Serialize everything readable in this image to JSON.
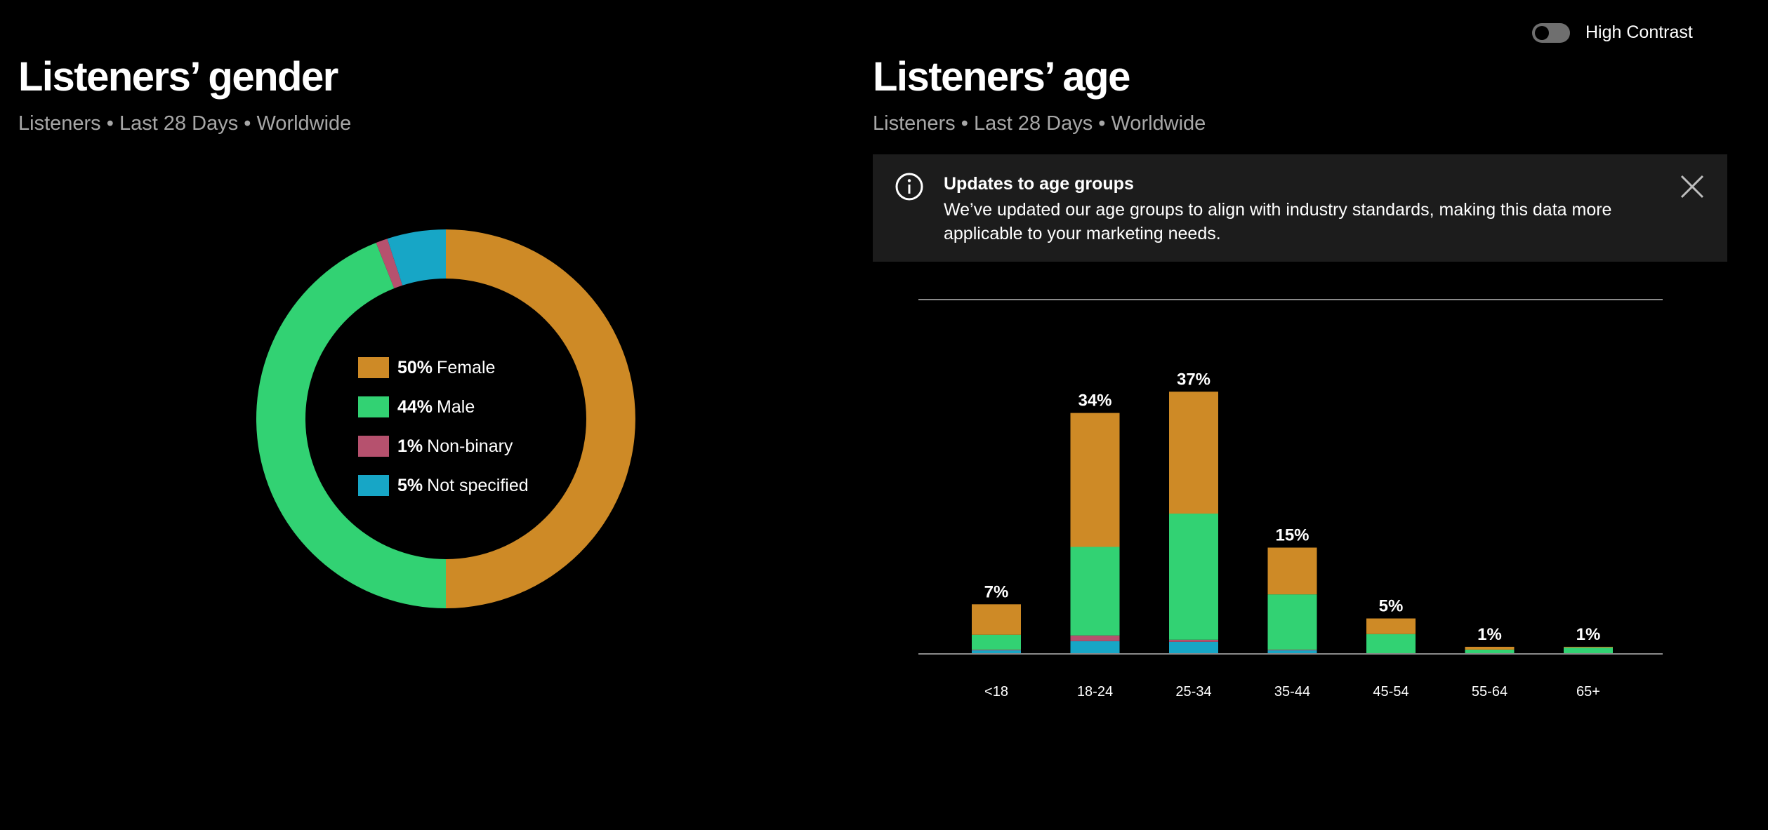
{
  "header": {
    "toggle_label": "High Contrast"
  },
  "gender": {
    "title": "Listeners’ gender",
    "subtitle": "Listeners • Last 28 Days • Worldwide"
  },
  "age": {
    "title": "Listeners’ age",
    "subtitle": "Listeners • Last 28 Days • Worldwide"
  },
  "banner": {
    "title": "Updates to age groups",
    "text": "We’ve updated our age groups to align with industry standards, making this data more applicable to your marketing needs."
  },
  "colors": {
    "female": "#ce8a26",
    "male": "#32d273",
    "non_binary": "#b6516e",
    "not_specified": "#17a6c6",
    "axis": "#8a8a8a",
    "background": "#000000"
  },
  "chart_data": [
    {
      "type": "pie",
      "title": "Listeners’ gender",
      "slices": [
        {
          "label": "Female",
          "value": 50,
          "pct_label": "50%",
          "color": "#ce8a26"
        },
        {
          "label": "Male",
          "value": 44,
          "pct_label": "44%",
          "color": "#32d273"
        },
        {
          "label": "Non-binary",
          "value": 1,
          "pct_label": "1%",
          "color": "#b6516e"
        },
        {
          "label": "Not specified",
          "value": 5,
          "pct_label": "5%",
          "color": "#17a6c6"
        }
      ]
    },
    {
      "type": "bar",
      "stacked": true,
      "title": "Listeners’ age",
      "categories": [
        "<18",
        "18-24",
        "25-34",
        "35-44",
        "45-54",
        "55-64",
        "65+"
      ],
      "totals": [
        7,
        34,
        37,
        15,
        5,
        1,
        1
      ],
      "total_labels": [
        "7%",
        "34%",
        "37%",
        "15%",
        "5%",
        "1%",
        "1%"
      ],
      "series": [
        {
          "name": "Not specified",
          "color": "#17a6c6",
          "values": [
            0.5,
            1.8,
            1.7,
            0.5,
            0.1,
            0.0,
            0.0
          ]
        },
        {
          "name": "Non-binary",
          "color": "#b6516e",
          "values": [
            0.1,
            0.8,
            0.3,
            0.1,
            0.0,
            0.0,
            0.0
          ]
        },
        {
          "name": "Male",
          "color": "#32d273",
          "values": [
            2.1,
            12.5,
            17.8,
            7.8,
            2.7,
            0.6,
            0.9
          ]
        },
        {
          "name": "Female",
          "color": "#ce8a26",
          "values": [
            4.3,
            18.9,
            17.2,
            6.6,
            2.2,
            0.4,
            0.1
          ]
        }
      ],
      "ylim": [
        0,
        50
      ]
    }
  ]
}
